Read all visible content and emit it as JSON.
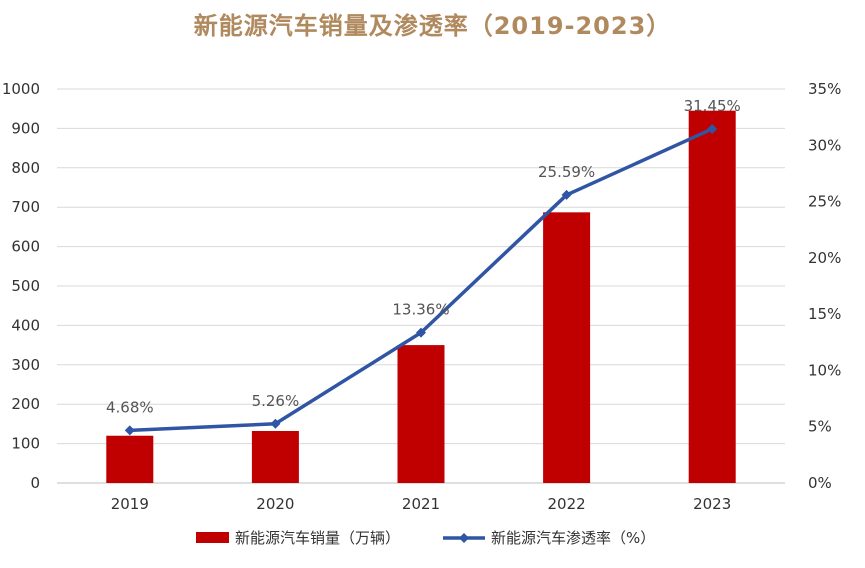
{
  "chart_data": {
    "type": "bar+line",
    "title": "新能源汽车销量及渗透率（2019-2023）",
    "categories": [
      "2019",
      "2020",
      "2021",
      "2022",
      "2023"
    ],
    "series": [
      {
        "name": "新能源汽车销量（万辆）",
        "type": "bar",
        "axis": "left",
        "values": [
          120,
          132,
          350,
          687,
          945
        ],
        "color": "#C00000"
      },
      {
        "name": "新能源汽车渗透率（%）",
        "type": "line",
        "axis": "right",
        "values": [
          4.68,
          5.26,
          13.36,
          25.59,
          31.45
        ],
        "labels": [
          "4.68%",
          "5.26%",
          "13.36%",
          "25.59%",
          "31.45%"
        ],
        "color": "#2F55A4"
      }
    ],
    "y_left": {
      "min": 0,
      "max": 1000,
      "ticks": [
        "0",
        "100",
        "200",
        "300",
        "400",
        "500",
        "600",
        "700",
        "800",
        "900",
        "1000"
      ]
    },
    "y_right": {
      "min": 0,
      "max": 35,
      "ticks": [
        "0%",
        "5%",
        "10%",
        "15%",
        "20%",
        "25%",
        "30%",
        "35%"
      ]
    },
    "grid": true,
    "legend": "bottom"
  }
}
